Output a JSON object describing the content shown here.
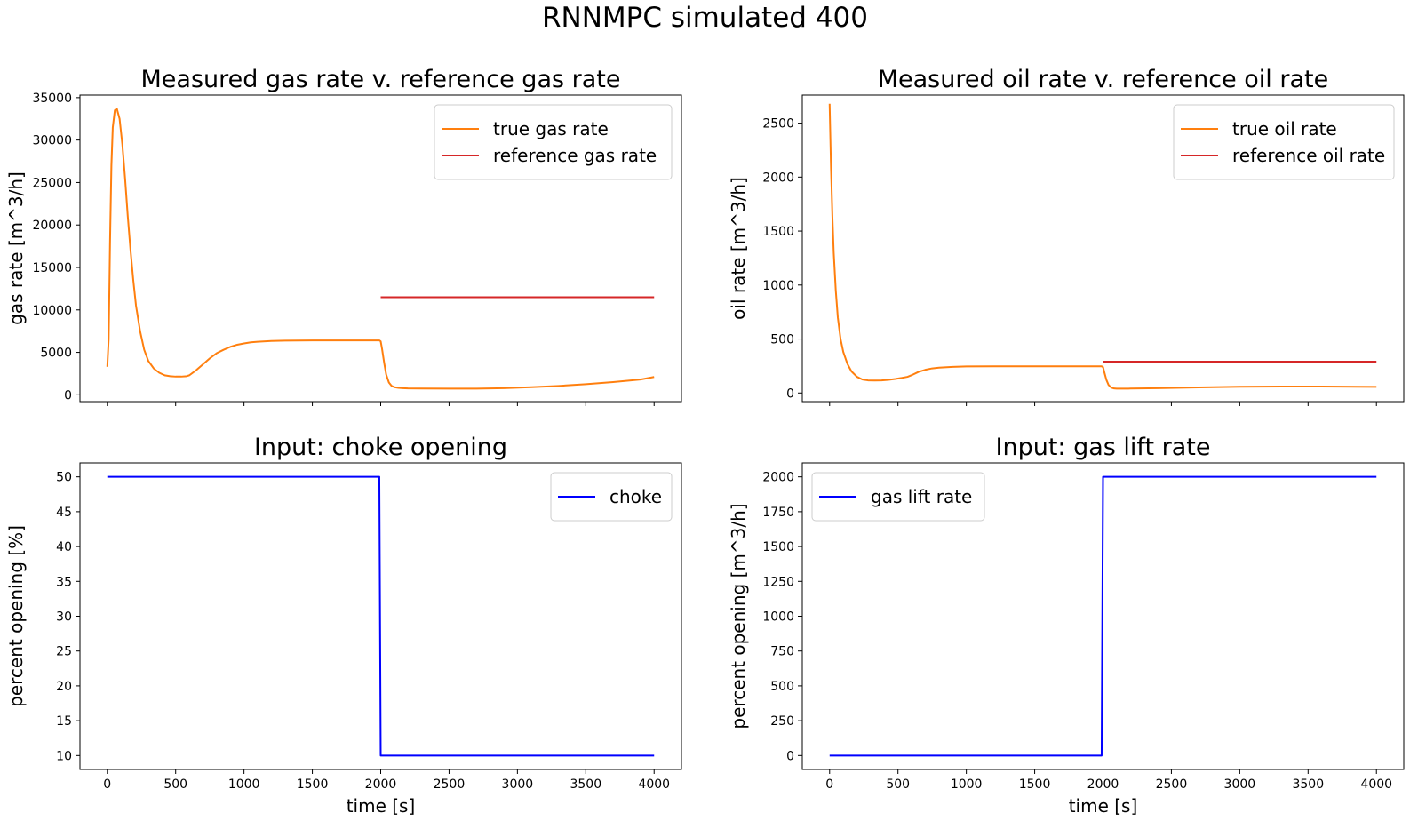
{
  "suptitle": "RNNMPC simulated 400",
  "colors": {
    "orange": "#ff7f0e",
    "red": "#d62728",
    "blue": "#0000ff"
  },
  "chart_data": [
    {
      "type": "line",
      "title": "Measured gas rate v. reference gas rate",
      "xlabel": "",
      "ylabel": "gas rate [m^3/h]",
      "xlim": [
        -200,
        4200
      ],
      "ylim": [
        -800,
        35300
      ],
      "xticks": [
        0,
        500,
        1000,
        1500,
        2000,
        2500,
        3000,
        3500,
        4000
      ],
      "xticklabels_visible": false,
      "yticks": [
        0,
        5000,
        10000,
        15000,
        20000,
        25000,
        30000,
        35000
      ],
      "legend": "top-right",
      "grid": false,
      "series": [
        {
          "name": "true gas rate",
          "color": "#ff7f0e",
          "x": [
            0,
            10,
            20,
            30,
            40,
            55,
            70,
            90,
            110,
            130,
            150,
            170,
            190,
            210,
            240,
            270,
            300,
            340,
            380,
            420,
            460,
            500,
            540,
            580,
            600,
            650,
            700,
            750,
            800,
            850,
            900,
            950,
            1000,
            1050,
            1100,
            1200,
            1300,
            1400,
            1500,
            1600,
            1700,
            1800,
            1900,
            1990,
            2000,
            2010,
            2025,
            2040,
            2060,
            2080,
            2100,
            2130,
            2160,
            2200,
            2300,
            2500,
            2700,
            2900,
            3100,
            3300,
            3500,
            3700,
            3900,
            4000
          ],
          "y": [
            3300,
            6500,
            18000,
            27000,
            31500,
            33500,
            33700,
            32500,
            29500,
            25500,
            21000,
            17000,
            13500,
            10500,
            7500,
            5300,
            4000,
            3100,
            2600,
            2300,
            2200,
            2150,
            2150,
            2200,
            2300,
            2900,
            3600,
            4300,
            4900,
            5300,
            5650,
            5900,
            6050,
            6180,
            6250,
            6340,
            6380,
            6400,
            6410,
            6410,
            6410,
            6410,
            6410,
            6410,
            6300,
            5400,
            3800,
            2400,
            1450,
            1050,
            900,
            820,
            780,
            760,
            750,
            730,
            730,
            780,
            900,
            1050,
            1250,
            1500,
            1800,
            2100
          ]
        },
        {
          "name": "reference gas rate",
          "color": "#d62728",
          "x": [
            2000,
            4000
          ],
          "y": [
            11500,
            11500
          ]
        }
      ]
    },
    {
      "type": "line",
      "title": "Measured oil rate v. reference oil rate",
      "xlabel": "",
      "ylabel": "oil rate [m^3/h]",
      "xlim": [
        -200,
        4200
      ],
      "ylim": [
        -80,
        2760
      ],
      "xticks": [
        0,
        500,
        1000,
        1500,
        2000,
        2500,
        3000,
        3500,
        4000
      ],
      "xticklabels_visible": false,
      "yticks": [
        0,
        500,
        1000,
        1500,
        2000,
        2500
      ],
      "legend": "top-right",
      "grid": false,
      "series": [
        {
          "name": "true oil rate",
          "color": "#ff7f0e",
          "x": [
            0,
            10,
            20,
            30,
            45,
            60,
            80,
            100,
            130,
            160,
            200,
            240,
            280,
            330,
            380,
            430,
            480,
            530,
            570,
            600,
            650,
            700,
            750,
            800,
            900,
            1000,
            1200,
            1500,
            1800,
            1990,
            2000,
            2010,
            2025,
            2040,
            2060,
            2080,
            2100,
            2150,
            2200,
            2400,
            2700,
            3000,
            3300,
            3600,
            4000
          ],
          "y": [
            2680,
            2100,
            1650,
            1300,
            950,
            700,
            500,
            380,
            270,
            200,
            150,
            125,
            117,
            115,
            117,
            122,
            130,
            140,
            150,
            165,
            195,
            215,
            228,
            235,
            242,
            246,
            247,
            247,
            247,
            247,
            240,
            190,
            120,
            75,
            50,
            42,
            40,
            40,
            41,
            45,
            52,
            58,
            60,
            60,
            57
          ]
        },
        {
          "name": "reference oil rate",
          "color": "#d62728",
          "x": [
            2000,
            4000
          ],
          "y": [
            290,
            290
          ]
        }
      ]
    },
    {
      "type": "line",
      "title": "Input: choke opening",
      "xlabel": "time [s]",
      "ylabel": "percent opening [%]",
      "xlim": [
        -200,
        4200
      ],
      "ylim": [
        8,
        52
      ],
      "xticks": [
        0,
        500,
        1000,
        1500,
        2000,
        2500,
        3000,
        3500,
        4000
      ],
      "xticklabels_visible": true,
      "yticks": [
        10,
        15,
        20,
        25,
        30,
        35,
        40,
        45,
        50
      ],
      "legend": "top-right",
      "grid": false,
      "series": [
        {
          "name": "choke",
          "color": "#0000ff",
          "x": [
            0,
            1990,
            2000,
            4000
          ],
          "y": [
            50,
            50,
            10,
            10
          ]
        }
      ]
    },
    {
      "type": "line",
      "title": "Input: gas lift rate",
      "xlabel": "time [s]",
      "ylabel": "percent opening [m^3/h]",
      "xlim": [
        -200,
        4200
      ],
      "ylim": [
        -100,
        2100
      ],
      "xticks": [
        0,
        500,
        1000,
        1500,
        2000,
        2500,
        3000,
        3500,
        4000
      ],
      "xticklabels_visible": true,
      "yticks": [
        0,
        250,
        500,
        750,
        1000,
        1250,
        1500,
        1750,
        2000
      ],
      "legend": "top-left",
      "grid": false,
      "series": [
        {
          "name": "gas lift rate",
          "color": "#0000ff",
          "x": [
            0,
            1990,
            2000,
            4000
          ],
          "y": [
            0,
            0,
            2000,
            2000
          ]
        }
      ]
    }
  ]
}
